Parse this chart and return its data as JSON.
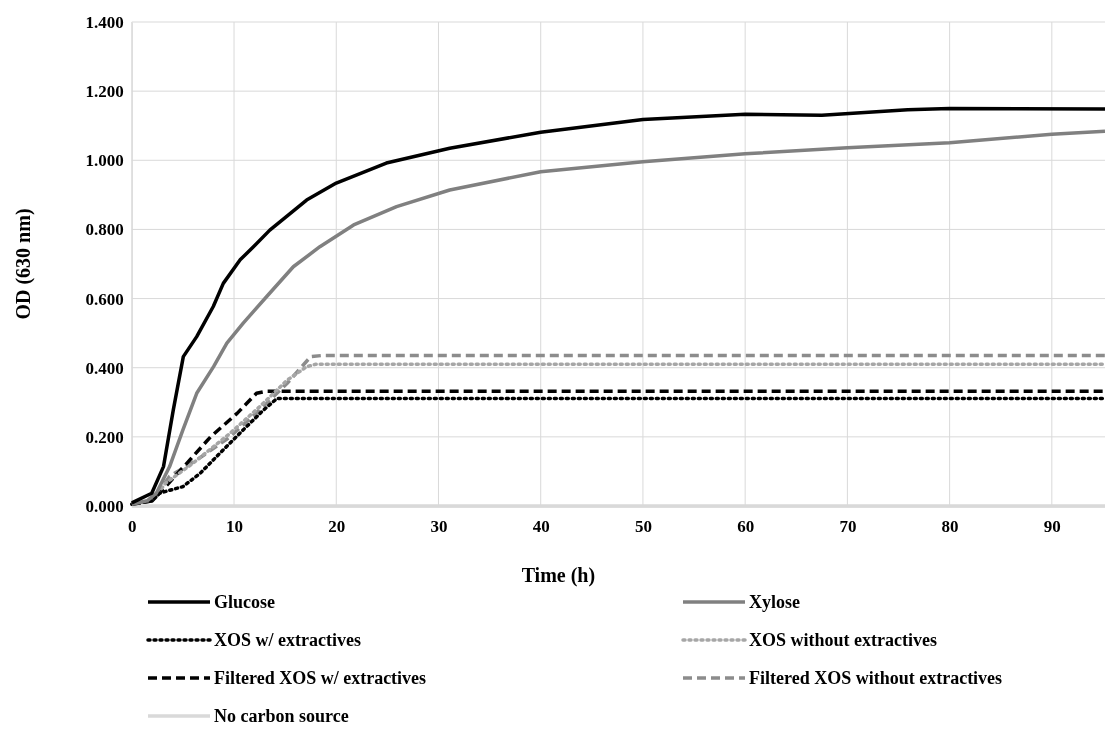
{
  "chart_data": {
    "type": "line",
    "xlabel": "Time (h)",
    "ylabel": "OD (630 nm)",
    "xlim": [
      0,
      95.2
    ],
    "xticks": [
      0,
      10,
      20,
      30,
      40,
      50,
      60,
      70,
      80,
      90
    ],
    "ylim": [
      0,
      1.4
    ],
    "yticks": [
      {
        "value": 0,
        "label": "0.000"
      },
      {
        "value": 0.2,
        "label": "0.200"
      },
      {
        "value": 0.4,
        "label": "0.400"
      },
      {
        "value": 0.6,
        "label": "0.600"
      },
      {
        "value": 0.8,
        "label": "0.800"
      },
      {
        "value": 1,
        "label": "1.000"
      },
      {
        "value": 1.2,
        "label": "1.200"
      },
      {
        "value": 1.4,
        "label": "1.400"
      }
    ],
    "grid": true,
    "legend": "bottom",
    "marker": "none",
    "series": [
      {
        "name": "Glucose",
        "color": "#000000",
        "line_style": "solid",
        "x": [
          0,
          1.95,
          3.1,
          4.06,
          5.04,
          6.35,
          7.97,
          8.95,
          10.6,
          11.9,
          13.5,
          17.1,
          20,
          24.9,
          31.1,
          40,
          50,
          60,
          67.5,
          75.9,
          80,
          95.2
        ],
        "values": [
          0.009,
          0.037,
          0.114,
          0.278,
          0.432,
          0.49,
          0.577,
          0.644,
          0.712,
          0.75,
          0.798,
          0.885,
          0.934,
          0.992,
          1.035,
          1.081,
          1.118,
          1.133,
          1.13,
          1.146,
          1.15,
          1.148
        ]
      },
      {
        "name": "Xylose",
        "color": "#808080",
        "line_style": "solid",
        "x": [
          0,
          1.5,
          2.4,
          3.7,
          5,
          6.35,
          8,
          9.3,
          10.9,
          13.2,
          15.8,
          18.4,
          21.7,
          25.9,
          31.1,
          40,
          50,
          60,
          70,
          80,
          90,
          95.2
        ],
        "values": [
          0.005,
          0.015,
          0.037,
          0.114,
          0.22,
          0.326,
          0.403,
          0.471,
          0.529,
          0.606,
          0.692,
          0.75,
          0.813,
          0.866,
          0.914,
          0.967,
          0.996,
          1.019,
          1.036,
          1.051,
          1.075,
          1.084
        ]
      },
      {
        "name": "XOS w/ extractives",
        "color": "#000000",
        "line_style": "dotted",
        "x": [
          0,
          2,
          2.7,
          5,
          6.7,
          8.6,
          11.2,
          12.9,
          14.2,
          95.2
        ],
        "values": [
          0.005,
          0.015,
          0.037,
          0.056,
          0.095,
          0.152,
          0.229,
          0.278,
          0.311,
          0.311
        ]
      },
      {
        "name": "XOS without extractives",
        "color": "#a6a6a6",
        "line_style": "dotted",
        "x": [
          0,
          2,
          3.3,
          6,
          9.6,
          12.5,
          15.2,
          17.1,
          18,
          95.2
        ],
        "values": [
          0.005,
          0.015,
          0.066,
          0.124,
          0.21,
          0.287,
          0.364,
          0.403,
          0.41,
          0.41
        ]
      },
      {
        "name": "Filtered XOS w/ extractives",
        "color": "#000000",
        "line_style": "dashed",
        "x": [
          0,
          2,
          2.8,
          5.4,
          7.7,
          10.3,
          12.2,
          13.2,
          95.2
        ],
        "values": [
          0.005,
          0.015,
          0.04,
          0.124,
          0.2,
          0.268,
          0.326,
          0.332,
          0.332
        ]
      },
      {
        "name": "Filtered XOS without extractives",
        "color": "#8c8c8c",
        "line_style": "dashed",
        "x": [
          0,
          2,
          3.7,
          6.35,
          9.6,
          12.5,
          15.2,
          17.5,
          18.5,
          95.2
        ],
        "values": [
          0.005,
          0.015,
          0.086,
          0.133,
          0.2,
          0.278,
          0.355,
          0.432,
          0.435,
          0.435
        ]
      },
      {
        "name": "No carbon source",
        "color": "#d9d9d9",
        "line_style": "solid",
        "x": [
          0,
          95.2
        ],
        "values": [
          0,
          0
        ]
      }
    ]
  }
}
